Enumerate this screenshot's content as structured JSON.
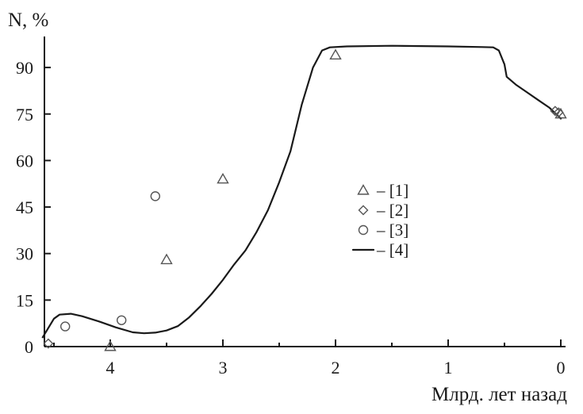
{
  "chart_data": {
    "type": "scatter",
    "title": "",
    "ylabel": "N, %",
    "xlabel": "Млрд. лет назад",
    "xlim": [
      4.6,
      0
    ],
    "ylim": [
      0,
      97
    ],
    "x_ticks": [
      4,
      3,
      2,
      1,
      0
    ],
    "y_ticks": [
      0,
      15,
      30,
      45,
      60,
      75,
      90
    ],
    "series": [
      {
        "name": "– [1]",
        "marker": "triangle",
        "points": [
          {
            "x": 4.0,
            "y": 0
          },
          {
            "x": 3.5,
            "y": 28
          },
          {
            "x": 3.0,
            "y": 54
          },
          {
            "x": 2.0,
            "y": 94
          },
          {
            "x": 0.0,
            "y": 75
          }
        ]
      },
      {
        "name": "– [2]",
        "marker": "diamond",
        "points": [
          {
            "x": 4.55,
            "y": 1
          },
          {
            "x": 0.05,
            "y": 76
          },
          {
            "x": 0.02,
            "y": 75.5
          }
        ]
      },
      {
        "name": "– [3]",
        "marker": "circle",
        "points": [
          {
            "x": 4.4,
            "y": 6.5
          },
          {
            "x": 3.9,
            "y": 8.5
          },
          {
            "x": 3.6,
            "y": 48.5
          }
        ]
      },
      {
        "name": "– [4]",
        "marker": "line",
        "points": [
          {
            "x": 4.6,
            "y": 3
          },
          {
            "x": 4.5,
            "y": 9
          },
          {
            "x": 4.45,
            "y": 10.3
          },
          {
            "x": 4.35,
            "y": 10.6
          },
          {
            "x": 4.25,
            "y": 9.8
          },
          {
            "x": 4.1,
            "y": 8.1
          },
          {
            "x": 3.95,
            "y": 6.2
          },
          {
            "x": 3.8,
            "y": 4.6
          },
          {
            "x": 3.7,
            "y": 4.3
          },
          {
            "x": 3.6,
            "y": 4.5
          },
          {
            "x": 3.5,
            "y": 5.2
          },
          {
            "x": 3.4,
            "y": 6.6
          },
          {
            "x": 3.3,
            "y": 9.4
          },
          {
            "x": 3.2,
            "y": 13
          },
          {
            "x": 3.1,
            "y": 17
          },
          {
            "x": 3.0,
            "y": 21.5
          },
          {
            "x": 2.9,
            "y": 26.5
          },
          {
            "x": 2.8,
            "y": 31
          },
          {
            "x": 2.7,
            "y": 37
          },
          {
            "x": 2.6,
            "y": 44
          },
          {
            "x": 2.5,
            "y": 53
          },
          {
            "x": 2.4,
            "y": 63
          },
          {
            "x": 2.3,
            "y": 78
          },
          {
            "x": 2.2,
            "y": 90
          },
          {
            "x": 2.12,
            "y": 95.5
          },
          {
            "x": 2.05,
            "y": 96.5
          },
          {
            "x": 1.9,
            "y": 96.8
          },
          {
            "x": 1.5,
            "y": 97
          },
          {
            "x": 1.0,
            "y": 96.8
          },
          {
            "x": 0.7,
            "y": 96.6
          },
          {
            "x": 0.6,
            "y": 96.5
          },
          {
            "x": 0.55,
            "y": 95.5
          },
          {
            "x": 0.5,
            "y": 91
          },
          {
            "x": 0.48,
            "y": 87
          },
          {
            "x": 0.4,
            "y": 84.5
          },
          {
            "x": 0.3,
            "y": 82
          },
          {
            "x": 0.2,
            "y": 79.5
          },
          {
            "x": 0.1,
            "y": 77
          },
          {
            "x": 0.0,
            "y": 73.5
          }
        ]
      }
    ]
  }
}
